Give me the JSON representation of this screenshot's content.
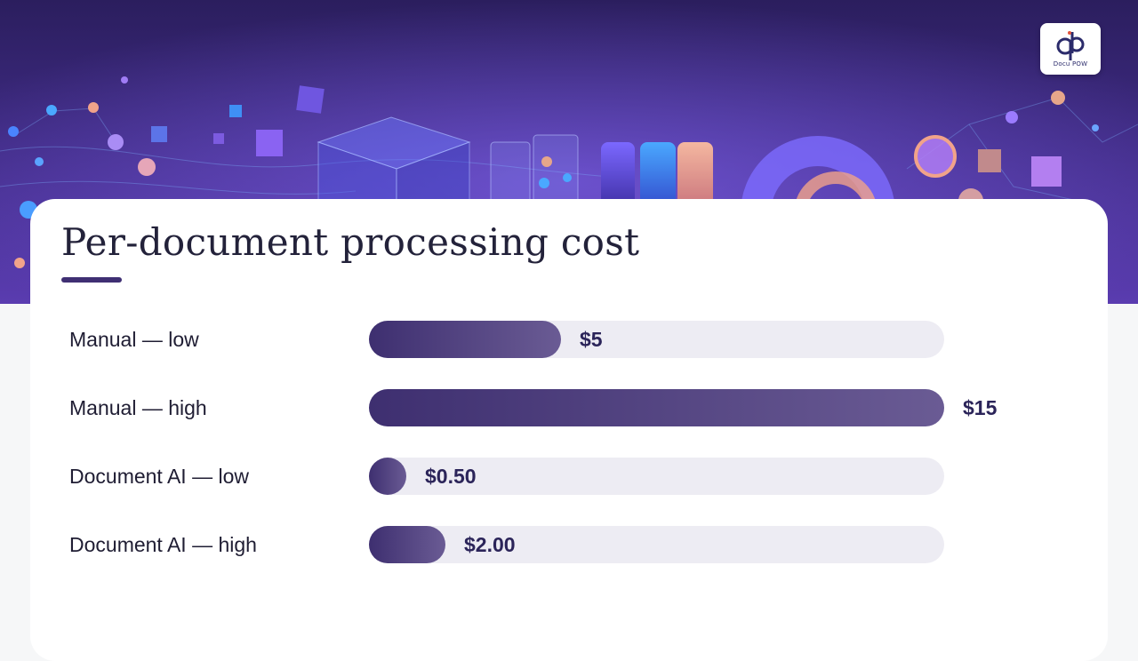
{
  "logo": {
    "text": "Docu POW"
  },
  "chart_data": {
    "type": "bar",
    "orientation": "horizontal",
    "title": "Per-document processing cost",
    "categories": [
      "Manual — low",
      "Manual — high",
      "Document AI — low",
      "Document AI — high"
    ],
    "values": [
      5,
      15,
      0.5,
      2
    ],
    "value_labels": [
      "$5",
      "$15",
      "$0.50",
      "$2.00"
    ],
    "xlim": [
      0,
      15
    ],
    "grid": false,
    "bar_color": "#4a3a7e",
    "track_color": "#edecf3"
  }
}
